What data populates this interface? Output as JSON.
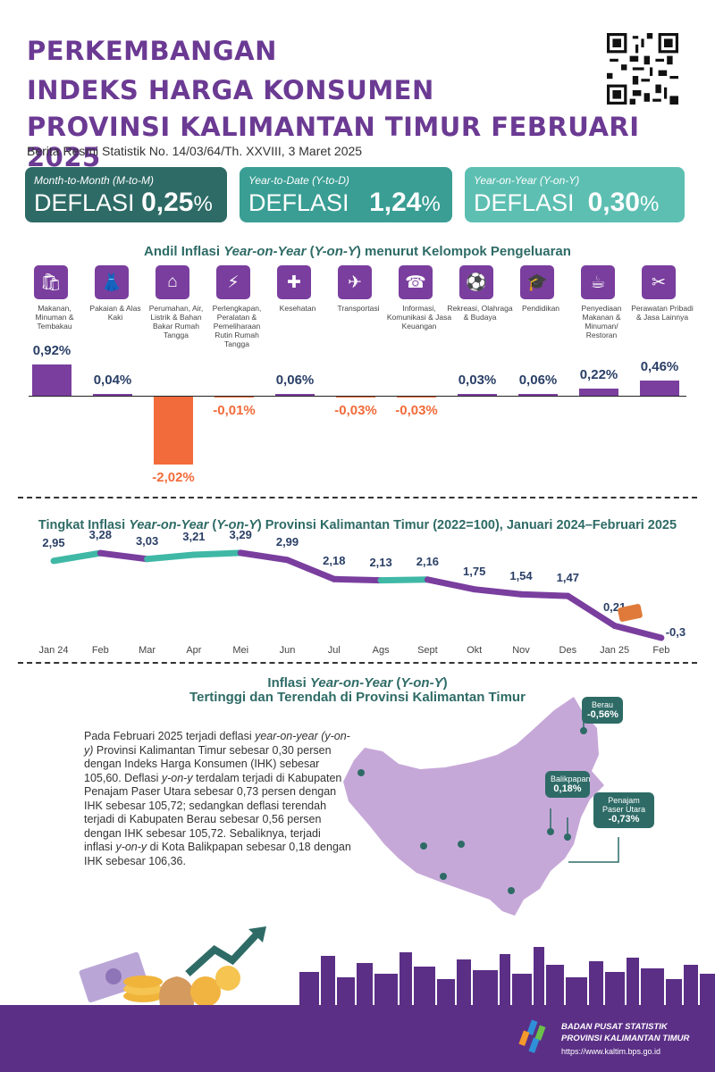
{
  "header": {
    "title_lines": [
      "PERKEMBANGAN",
      "INDEKS HARGA KONSUMEN",
      "PROVINSI KALIMANTAN TIMUR FEBRUARI 2025"
    ],
    "subtitle": "Berita Resmi Statistik No. 14/03/64/Th. XXVIII, 3 Maret 2025"
  },
  "cards": [
    {
      "label": "Month-to-Month (M-to-M)",
      "word": "DEFLASI",
      "value": "0,25",
      "pct": "%",
      "color": "#2e6b66"
    },
    {
      "label": "Year-to-Date (Y-to-D)",
      "word": "DEFLASI",
      "value": "1,24",
      "pct": "%",
      "color": "#3a9e94"
    },
    {
      "label": "Year-on-Year (Y-on-Y)",
      "word": "DEFLASI",
      "value": "0,30",
      "pct": "%",
      "color": "#5dbfb2"
    }
  ],
  "colors": {
    "purple": "#7a3e9e",
    "orange": "#f26b3a",
    "teal": "#2e6b66",
    "teal_light": "#3fb8a6",
    "navy": "#2a3f66"
  },
  "section1_title_parts": [
    "Andil Inflasi ",
    "Year-on-Year",
    " (",
    "Y-on-Y",
    ") menurut Kelompok Pengeluaran"
  ],
  "section2_title_parts": [
    "Tingkat Inflasi ",
    "Year-on-Year",
    " (",
    "Y-on-Y",
    ") Provinsi Kalimantan Timur (2022=100), Januari 2024–Februari 2025"
  ],
  "section3_title_parts": [
    "Inflasi ",
    "Year-on-Year",
    " (",
    "Y-on-Y",
    ")"
  ],
  "section3_subtitle": "Tertinggi dan Terendah di Provinsi Kalimantan Timur",
  "chart_data": [
    {
      "type": "bar",
      "categories": [
        "Makanan, Minuman & Tembakau",
        "Pakaian & Alas Kaki",
        "Perumahan, Air, Listrik & Bahan Bakar Rumah Tangga",
        "Perlengkapan, Peralatan & Pemeliharaan Rutin Rumah Tangga",
        "Kesehatan",
        "Transportasi",
        "Informasi, Komunikasi & Jasa Keuangan",
        "Rekreasi, Olahraga & Budaya",
        "Pendidikan",
        "Penyediaan Makanan & Minuman/ Restoran",
        "Perawatan Pribadi & Jasa Lainnya"
      ],
      "values": [
        0.92,
        0.04,
        -2.02,
        -0.01,
        0.06,
        -0.03,
        -0.03,
        0.03,
        0.06,
        0.22,
        0.46
      ],
      "value_labels": [
        "0,92%",
        "0,04%",
        "-2,02%",
        "-0,01%",
        "0,06%",
        "-0,03%",
        "-0,03%",
        "0,03%",
        "0,06%",
        "0,22%",
        "0,46%"
      ],
      "icons": [
        "shopping-bag-icon",
        "dress-icon",
        "house-icon",
        "plug-icon",
        "first-aid-icon",
        "airplane-icon",
        "smartphone-icon",
        "football-icon",
        "graduation-cap-icon",
        "food-tray-icon",
        "scissors-comb-icon"
      ],
      "colors": {
        "positive": "#7a3e9e",
        "negative": "#f26b3a"
      }
    },
    {
      "type": "line",
      "x": [
        "Jan 24",
        "Feb",
        "Mar",
        "Apr",
        "Mei",
        "Jun",
        "Jul",
        "Ags",
        "Sept",
        "Okt",
        "Nov",
        "Des",
        "Jan 25",
        "Feb"
      ],
      "values": [
        2.95,
        3.28,
        3.03,
        3.21,
        3.29,
        2.99,
        2.18,
        2.13,
        2.16,
        1.75,
        1.54,
        1.47,
        0.21,
        -0.3
      ],
      "value_labels": [
        "2,95",
        "3,28",
        "3,03",
        "3,21",
        "3,29",
        "2,99",
        "2,18",
        "2,13",
        "2,16",
        "1,75",
        "1,54",
        "1,47",
        "0,21",
        "-0,3"
      ],
      "colors": {
        "rising": "#3fb8a6",
        "falling": "#7a3e9e"
      }
    }
  ],
  "map": {
    "paragraph_html": "Pada Februari 2025 terjadi deflasi <i>year-on-year (y-on-y)</i> Provinsi Kalimantan Timur sebesar 0,30 persen dengan Indeks Harga Konsumen (IHK) sebesar 105,60. Deflasi <i>y-on-y</i> terdalam terjadi di Kabupaten Penajam Paser Utara sebesar 0,73 persen dengan IHK sebesar 105,72; sedangkan deflasi terendah terjadi di Kabupaten Berau sebesar 0,56 persen dengan IHK sebesar 105,72. Sebaliknya, terjadi inflasi <i>y-on-y</i> di Kota Balikpapan sebesar 0,18 dengan IHK sebesar 106,36.",
    "tags": [
      {
        "name": "Berau",
        "value": "-0,56%"
      },
      {
        "name": "Balikpapan",
        "value": "0,18%"
      },
      {
        "name": "Penajam Paser Utara",
        "value": "-0,73%"
      }
    ]
  },
  "footer": {
    "org_line1": "BADAN PUSAT STATISTIK",
    "org_line2": "PROVINSI KALIMANTAN TIMUR",
    "url": "https://www.kaltim.bps.go.id"
  }
}
